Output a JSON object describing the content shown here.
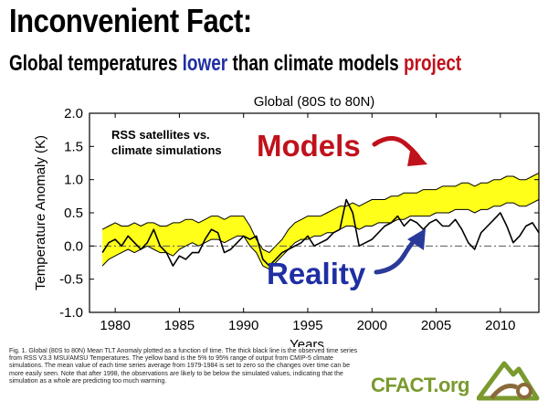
{
  "header": {
    "title": "Inconvenient Fact:",
    "subtitle_part1": "Global temperatures ",
    "subtitle_lower": "lower",
    "subtitle_part2": " than climate models ",
    "subtitle_project": "project"
  },
  "colors": {
    "lower_text": "#1f2fa3",
    "project_text": "#c0121c",
    "band_fill": "#ffff1a",
    "band_edge": "#000000",
    "models_arrow": "#c0121c",
    "reality_arrow": "#2a3a9a",
    "logo_green": "#7a9a2e",
    "logo_brown": "#8a6a3a"
  },
  "chart_data": {
    "type": "area",
    "title": "Global (80S to 80N)",
    "xlabel": "Years",
    "ylabel": "Temperature Anomaly (K)",
    "xlim": [
      1978,
      2013
    ],
    "ylim": [
      -1.0,
      2.0
    ],
    "xticks": [
      1980,
      1985,
      1990,
      1995,
      2000,
      2005,
      2010
    ],
    "yticks": [
      "-1.0",
      "-0.5",
      "0.0",
      "0.5",
      "1.0",
      "1.5",
      "2.0"
    ],
    "zero_line": true,
    "grid": false,
    "annotations": {
      "inset": [
        "RSS satellites vs.",
        "climate simulations"
      ],
      "models_label": "Models",
      "reality_label": "Reality"
    },
    "x": [
      1979,
      1979.5,
      1980,
      1980.5,
      1981,
      1981.5,
      1982,
      1982.5,
      1983,
      1983.5,
      1984,
      1984.5,
      1985,
      1985.5,
      1986,
      1986.5,
      1987,
      1987.5,
      1988,
      1988.5,
      1989,
      1989.5,
      1990,
      1990.5,
      1991,
      1991.5,
      1992,
      1992.5,
      1993,
      1993.5,
      1994,
      1994.5,
      1995,
      1995.5,
      1996,
      1996.5,
      1997,
      1997.5,
      1998,
      1998.5,
      1999,
      1999.5,
      2000,
      2000.5,
      2001,
      2001.5,
      2002,
      2002.5,
      2003,
      2003.5,
      2004,
      2004.5,
      2005,
      2005.5,
      2006,
      2006.5,
      2007,
      2007.5,
      2008,
      2008.5,
      2009,
      2009.5,
      2010,
      2010.5,
      2011,
      2011.5,
      2012,
      2012.5,
      2013
    ],
    "series": [
      {
        "name": "model 5% range",
        "values": [
          -0.3,
          -0.2,
          -0.15,
          -0.1,
          -0.05,
          -0.1,
          -0.05,
          0.0,
          -0.05,
          -0.1,
          -0.1,
          -0.15,
          -0.05,
          0.0,
          0.05,
          0.0,
          0.05,
          0.1,
          0.1,
          0.05,
          0.1,
          0.15,
          0.15,
          0.0,
          -0.1,
          -0.3,
          -0.35,
          -0.25,
          -0.15,
          -0.05,
          0.05,
          0.1,
          0.1,
          0.15,
          0.15,
          0.2,
          0.2,
          0.25,
          0.3,
          0.3,
          0.25,
          0.3,
          0.3,
          0.35,
          0.35,
          0.35,
          0.4,
          0.4,
          0.45,
          0.45,
          0.45,
          0.45,
          0.5,
          0.5,
          0.5,
          0.55,
          0.55,
          0.55,
          0.5,
          0.55,
          0.55,
          0.6,
          0.6,
          0.65,
          0.65,
          0.6,
          0.6,
          0.65,
          0.7
        ]
      },
      {
        "name": "model 95% range",
        "values": [
          0.25,
          0.3,
          0.35,
          0.3,
          0.3,
          0.35,
          0.3,
          0.35,
          0.35,
          0.3,
          0.3,
          0.35,
          0.35,
          0.4,
          0.4,
          0.35,
          0.4,
          0.45,
          0.45,
          0.4,
          0.45,
          0.45,
          0.45,
          0.3,
          0.1,
          -0.05,
          -0.1,
          0.0,
          0.1,
          0.25,
          0.35,
          0.4,
          0.45,
          0.45,
          0.45,
          0.5,
          0.55,
          0.6,
          0.6,
          0.65,
          0.6,
          0.65,
          0.7,
          0.7,
          0.7,
          0.75,
          0.75,
          0.8,
          0.8,
          0.8,
          0.85,
          0.85,
          0.85,
          0.9,
          0.9,
          0.9,
          0.95,
          0.95,
          0.9,
          0.95,
          0.95,
          1.0,
          1.0,
          1.05,
          1.05,
          1.0,
          1.0,
          1.05,
          1.1
        ]
      },
      {
        "name": "RSS observations",
        "values": [
          -0.1,
          0.05,
          0.1,
          0.0,
          0.15,
          0.05,
          -0.05,
          0.05,
          0.25,
          0.0,
          -0.1,
          -0.3,
          -0.15,
          -0.2,
          -0.1,
          -0.1,
          0.1,
          0.25,
          0.2,
          -0.1,
          -0.05,
          0.05,
          0.15,
          0.1,
          0.15,
          -0.2,
          -0.3,
          -0.2,
          -0.1,
          -0.05,
          0.0,
          0.05,
          0.15,
          0.0,
          0.05,
          0.1,
          0.2,
          0.25,
          0.7,
          0.5,
          0.0,
          0.05,
          0.1,
          0.2,
          0.3,
          0.35,
          0.45,
          0.3,
          0.4,
          0.35,
          0.25,
          0.35,
          0.4,
          0.3,
          0.3,
          0.4,
          0.25,
          0.05,
          -0.05,
          0.2,
          0.3,
          0.4,
          0.5,
          0.3,
          0.05,
          0.15,
          0.3,
          0.35,
          0.2
        ]
      }
    ]
  },
  "caption": "Fig. 1.  Global (80S to 80N) Mean TLT Anomaly plotted as a function of time.  The thick black line is the observed time series from RSS V3.3 MSU/AMSU Temperatures.  The yellow band is the 5% to 95% range of output from CMIP-5 climate simulations.  The mean value of each time series average from 1979-1984 is set to zero so the changes over time can be more easily seen.  Note that after 1998, the observations are likely to be below the simulated values, indicating that the simulation as a whole are predicting too much warming.",
  "logo": {
    "text": "CFACT.org",
    "icon": "mountain-sun-logo-icon"
  }
}
